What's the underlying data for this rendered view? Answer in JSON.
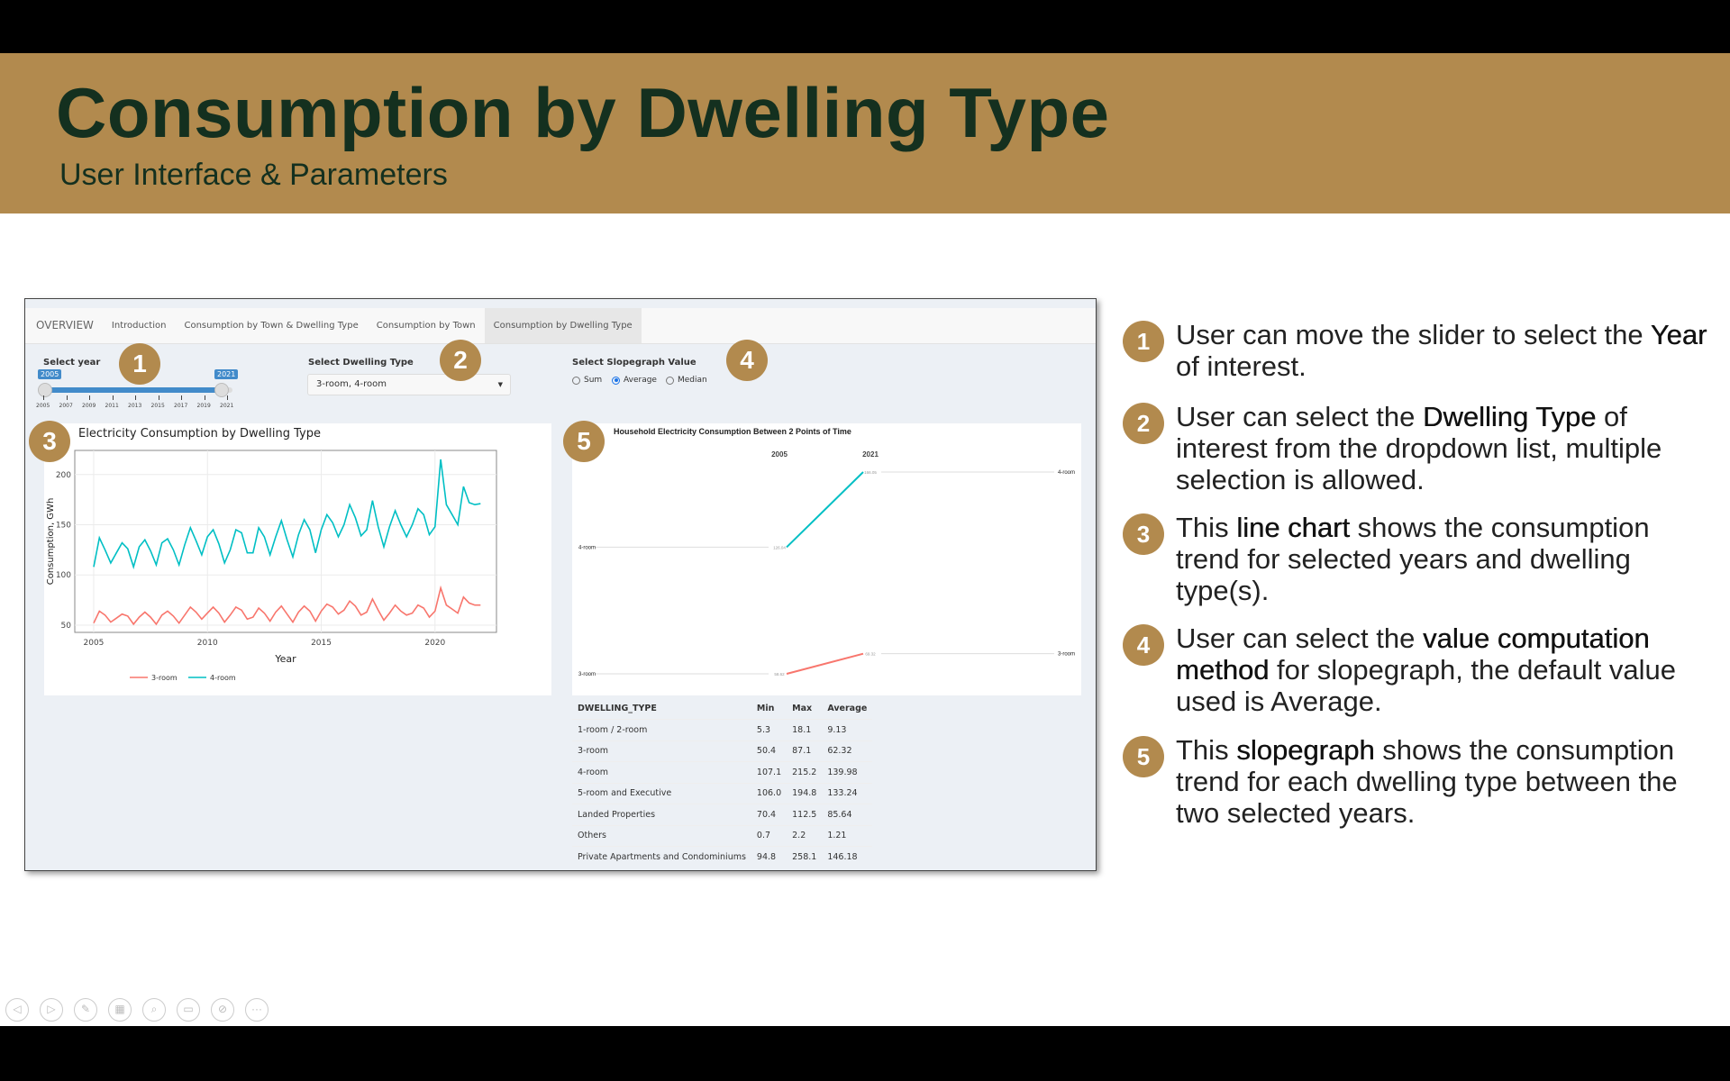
{
  "slide": {
    "title": "Consumption by Dwelling Type",
    "subtitle": "User Interface & Parameters"
  },
  "app": {
    "tabs": [
      "OVERVIEW",
      "Introduction",
      "Consumption by Town & Dwelling Type",
      "Consumption by Town",
      "Consumption by Dwelling Type"
    ],
    "active_tab": 4,
    "year_slider": {
      "label": "Select year",
      "from": 2005,
      "to": 2021,
      "min": 2005,
      "max": 2022,
      "ticks": [
        "2005",
        "2007",
        "2009",
        "2011",
        "2013",
        "2015",
        "2017",
        "2019",
        "2021"
      ]
    },
    "dwelling": {
      "label": "Select Dwelling Type",
      "value": "3-room, 4-room"
    },
    "slope_value": {
      "label": "Select Slopegraph Value",
      "options": [
        "Sum",
        "Average",
        "Median"
      ],
      "selected": "Average"
    },
    "table": {
      "headers": [
        "DWELLING_TYPE",
        "Min",
        "Max",
        "Average"
      ],
      "rows": [
        [
          "1-room / 2-room",
          "5.3",
          "18.1",
          "9.13"
        ],
        [
          "3-room",
          "50.4",
          "87.1",
          "62.32"
        ],
        [
          "4-room",
          "107.1",
          "215.2",
          "139.98"
        ],
        [
          "5-room and Executive",
          "106.0",
          "194.8",
          "133.24"
        ],
        [
          "Landed Properties",
          "70.4",
          "112.5",
          "85.64"
        ],
        [
          "Others",
          "0.7",
          "2.2",
          "1.21"
        ],
        [
          "Private Apartments and Condominiums",
          "94.8",
          "258.1",
          "146.18"
        ]
      ]
    }
  },
  "markers": [
    "1",
    "2",
    "3",
    "4",
    "5"
  ],
  "notes": [
    {
      "pre": "User can move the slider to select the ",
      "b": "Year",
      "post": " of interest."
    },
    {
      "pre": "User can select the ",
      "b": "Dwelling Type",
      "post": " of interest from the dropdown list, multiple selection is allowed."
    },
    {
      "pre": "This ",
      "b": "line chart",
      "post": " shows the consumption trend for selected years and dwelling type(s)."
    },
    {
      "pre": "User can select the ",
      "b": "value computation method",
      "post": " for slopegraph, the default value used is Average."
    },
    {
      "pre": "This ",
      "b": "slopegraph",
      "post": " shows the consumption trend for each dwelling type between the two selected years."
    }
  ],
  "colors": {
    "brand": "#b28a4e",
    "title": "#14301f",
    "3-room": "#f8766d",
    "4-room": "#00bfc4",
    "slider": "#428bca"
  },
  "chart_data": [
    {
      "type": "line",
      "title": "Electricity Consumption by Dwelling Type",
      "xlabel": "Year",
      "ylabel": "Consumption, GWh",
      "xlim": [
        2004.17,
        2022.7
      ],
      "ylim": [
        42.8,
        224
      ],
      "xticks": [
        2005,
        2010,
        2015,
        2020
      ],
      "yticks": [
        50,
        100,
        150,
        200
      ],
      "grid": true,
      "legend": "bottom",
      "x_start": 2005,
      "x_step": 0.25,
      "series": [
        {
          "name": "3-room",
          "values": [
            52,
            64,
            60,
            53,
            57,
            61,
            59,
            51,
            58,
            63,
            58,
            51,
            60,
            64,
            59,
            52,
            60,
            68,
            63,
            56,
            62,
            68,
            62,
            53,
            60,
            68,
            65,
            56,
            58,
            67,
            62,
            54,
            63,
            69,
            61,
            53,
            63,
            69,
            64,
            54,
            64,
            71,
            68,
            61,
            65,
            74,
            69,
            60,
            63,
            76,
            65,
            55,
            62,
            70,
            64,
            60,
            62,
            70,
            67,
            58,
            64,
            87,
            70,
            66,
            62,
            78,
            72,
            70,
            70
          ]
        },
        {
          "name": "4-room",
          "values": [
            108,
            137,
            125,
            112,
            122,
            132,
            126,
            108,
            128,
            135,
            124,
            110,
            132,
            136,
            125,
            110,
            130,
            147,
            134,
            120,
            138,
            145,
            131,
            112,
            125,
            145,
            142,
            122,
            122,
            147,
            138,
            120,
            138,
            154,
            135,
            118,
            140,
            155,
            145,
            122,
            145,
            160,
            152,
            138,
            150,
            170,
            157,
            139,
            145,
            174,
            148,
            128,
            148,
            164,
            150,
            138,
            150,
            166,
            160,
            140,
            148,
            215,
            170,
            160,
            150,
            188,
            172,
            170,
            171
          ]
        }
      ]
    },
    {
      "type": "slope",
      "title": "Household Electricity Consumption Between 2 Points of Time",
      "x": [
        "2005",
        "2021"
      ],
      "series": [
        {
          "name": "4-room",
          "values": [
            126.04,
            166.05
          ],
          "labels": [
            "126.04",
            "166.05"
          ]
        },
        {
          "name": "3-room",
          "values": [
            58.62,
            69.32
          ],
          "labels": [
            "58.62",
            "69.32"
          ]
        }
      ]
    }
  ],
  "player_icons": [
    "prev-icon",
    "next-icon",
    "pen-icon",
    "slides-icon",
    "zoom-icon",
    "subtitles-icon",
    "camera-off-icon",
    "more-icon"
  ]
}
